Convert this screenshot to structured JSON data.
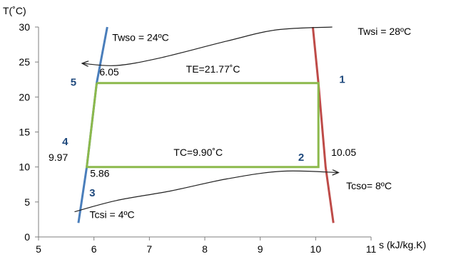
{
  "chart_data": {
    "type": "line",
    "title": "",
    "xlabel": "s (kJ/kg.K)",
    "ylabel": "T(˚C)",
    "xlim": [
      5,
      11
    ],
    "ylim": [
      0,
      30
    ],
    "x_ticks": [
      5,
      6,
      7,
      8,
      9,
      10,
      11
    ],
    "y_ticks": [
      0,
      5,
      10,
      15,
      20,
      25,
      30
    ],
    "grid": false,
    "legend": "none",
    "colors": {
      "left_curve": "#4a7ebb",
      "right_curve": "#be4b48",
      "cycle": "#8cb94c",
      "flow": "#222222",
      "point_number": "#1f497d",
      "axis": "#7f7f7f"
    },
    "series": [
      {
        "key": "left_curve",
        "points": [
          [
            5.72,
            2
          ],
          [
            5.87,
            10
          ],
          [
            6.05,
            22
          ],
          [
            6.24,
            30
          ]
        ]
      },
      {
        "key": "right_curve",
        "points": [
          [
            9.95,
            30
          ],
          [
            10.05,
            22
          ],
          [
            10.18,
            10
          ],
          [
            10.32,
            2
          ]
        ]
      },
      {
        "key": "cycle",
        "points": [
          [
            6.05,
            22
          ],
          [
            10.05,
            22
          ],
          [
            10.05,
            10
          ],
          [
            5.87,
            10
          ],
          [
            6.05,
            22
          ]
        ]
      },
      {
        "key": "warm_flow",
        "points": [
          [
            10.3,
            30
          ],
          [
            9.3,
            29.6
          ],
          [
            8.4,
            28
          ],
          [
            7.2,
            25.6
          ],
          [
            6.4,
            24.5
          ],
          [
            5.8,
            24.8
          ]
        ],
        "arrow": "end"
      },
      {
        "key": "cold_flow",
        "points": [
          [
            5.65,
            3.6
          ],
          [
            6.4,
            5.2
          ],
          [
            7.4,
            6.6
          ],
          [
            8.4,
            8.3
          ],
          [
            9.4,
            9.4
          ],
          [
            10.4,
            9.2
          ]
        ],
        "arrow": "end"
      }
    ],
    "annotations": [
      {
        "key": "twso",
        "text": "Twso = 24ºC",
        "x": 6.33,
        "y": 28,
        "anchor": "start",
        "color": "#000000"
      },
      {
        "key": "twsi",
        "text": "Twsi = 28ºC",
        "x": 10.76,
        "y": 28.9,
        "anchor": "start",
        "color": "#000000"
      },
      {
        "key": "te",
        "text": "TE=21.77˚C",
        "x": 8.15,
        "y": 23.5,
        "anchor": "middle",
        "color": "#000000"
      },
      {
        "key": "tc",
        "text": "TC=9.90˚C",
        "x": 7.88,
        "y": 11.6,
        "anchor": "middle",
        "color": "#000000"
      },
      {
        "key": "tcso",
        "text": "Tcso= 8ºC",
        "x": 10.55,
        "y": 6.8,
        "anchor": "start",
        "color": "#000000"
      },
      {
        "key": "tcsi",
        "text": "Tcsi = 4ºC",
        "x": 5.92,
        "y": 2.7,
        "anchor": "start",
        "color": "#000000"
      },
      {
        "key": "s_6_05",
        "text": "6.05",
        "x": 6.1,
        "y": 23.1,
        "anchor": "start",
        "color": "#000000"
      },
      {
        "key": "s_9_97",
        "text": "9.97",
        "x": 5.18,
        "y": 10.9,
        "anchor": "start",
        "color": "#000000"
      },
      {
        "key": "s_5_86",
        "text": "5.86",
        "x": 5.93,
        "y": 8.6,
        "anchor": "start",
        "color": "#000000"
      },
      {
        "key": "s_10_05",
        "text": "10.05",
        "x": 10.28,
        "y": 11.6,
        "anchor": "start",
        "color": "#000000"
      },
      {
        "key": "pt_1",
        "text": "1",
        "x": 10.48,
        "y": 22,
        "anchor": "middle",
        "color": "#1f497d"
      },
      {
        "key": "pt_2",
        "text": "2",
        "x": 9.74,
        "y": 10.9,
        "anchor": "middle",
        "color": "#1f497d"
      },
      {
        "key": "pt_3",
        "text": "3",
        "x": 5.97,
        "y": 5.8,
        "anchor": "middle",
        "color": "#1f497d"
      },
      {
        "key": "pt_4",
        "text": "4",
        "x": 5.48,
        "y": 13.1,
        "anchor": "middle",
        "color": "#1f497d"
      },
      {
        "key": "pt_5",
        "text": "5",
        "x": 5.63,
        "y": 21.6,
        "anchor": "middle",
        "color": "#1f497d"
      }
    ]
  }
}
